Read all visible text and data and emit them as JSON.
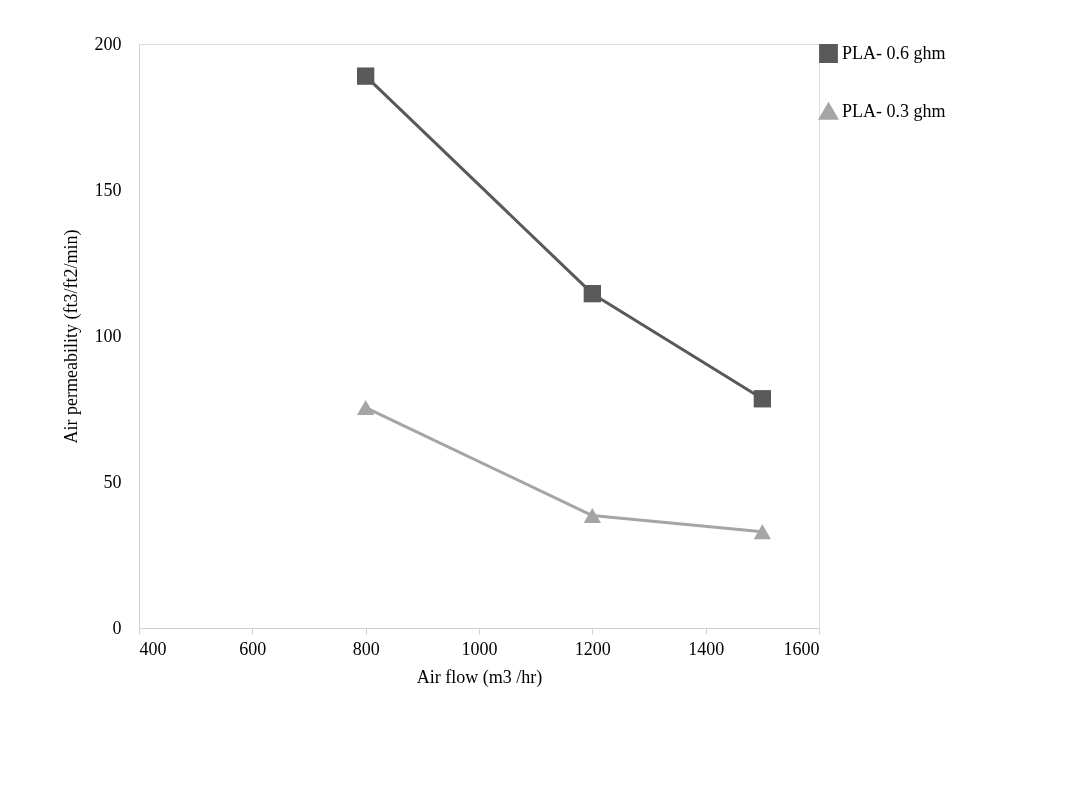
{
  "chart_data": {
    "type": "line",
    "xlabel": "Air flow (m3 /hr)",
    "ylabel": "Air permeability  (ft3/ft2/min)",
    "x": [
      800,
      1200,
      1500
    ],
    "series": [
      {
        "name": "PLA- 0.6 ghm",
        "color": "#595959",
        "values": [
          189,
          114.5,
          78.5
        ],
        "marker": "square"
      },
      {
        "name": "PLA- 0.3 ghm",
        "color": "#a5a5a5",
        "values": [
          75.5,
          38.5,
          33
        ],
        "marker": "triangle"
      }
    ],
    "xlim": [
      400,
      1600
    ],
    "xticks": [
      400,
      600,
      800,
      1000,
      1200,
      1400,
      1600
    ],
    "ylim": [
      0,
      200
    ],
    "yticks": [
      0,
      50,
      100,
      150,
      200
    ],
    "grid": false,
    "legend": "top right",
    "line_style": "solid"
  }
}
